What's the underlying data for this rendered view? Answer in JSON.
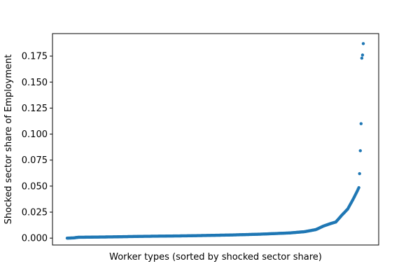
{
  "chart_data": {
    "type": "scatter",
    "xlabel": "Worker types (sorted by shocked sector share)",
    "ylabel": "Shocked sector share of Employment",
    "ylim": [
      -0.0066,
      0.1966
    ],
    "yticks": [
      0.0,
      0.025,
      0.05,
      0.075,
      0.1,
      0.125,
      0.15,
      0.175
    ],
    "ytick_labels": [
      "0.000",
      "0.025",
      "0.050",
      "0.075",
      "0.100",
      "0.125",
      "0.150",
      "0.175"
    ],
    "xticks": [],
    "grid": false,
    "point_color": "#1f77b4",
    "n_points": 400,
    "y_keypoints": [
      [
        0,
        0.0
      ],
      [
        8,
        0.0002
      ],
      [
        15,
        0.0008
      ],
      [
        60,
        0.0012
      ],
      [
        100,
        0.0017
      ],
      [
        160,
        0.0022
      ],
      [
        220,
        0.003
      ],
      [
        260,
        0.0038
      ],
      [
        300,
        0.005
      ],
      [
        320,
        0.0062
      ],
      [
        335,
        0.0082
      ],
      [
        345,
        0.0115
      ],
      [
        355,
        0.014
      ],
      [
        362,
        0.0155
      ],
      [
        370,
        0.022
      ],
      [
        378,
        0.028
      ],
      [
        385,
        0.037
      ],
      [
        390,
        0.044
      ],
      [
        394,
        0.05
      ],
      [
        397,
        0.055
      ]
    ],
    "top_values": [
      0.062,
      0.084,
      0.11,
      0.173,
      0.176,
      0.187
    ]
  }
}
